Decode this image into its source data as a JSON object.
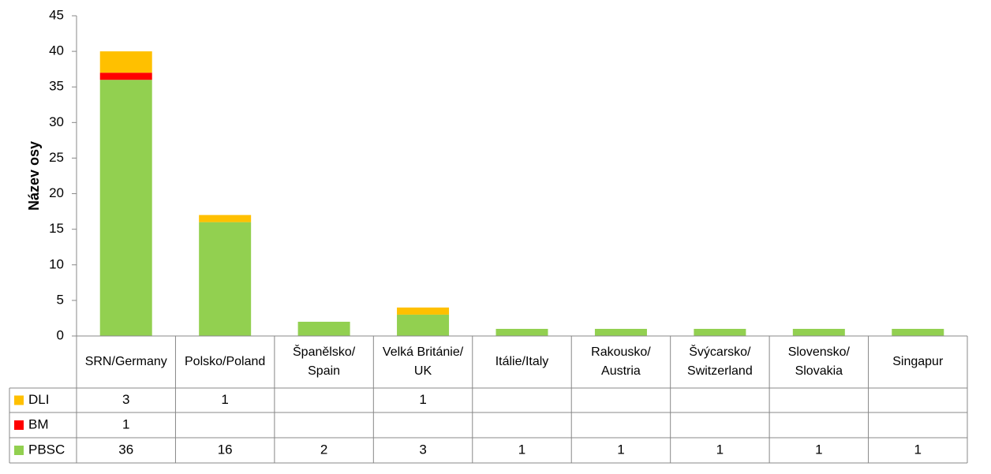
{
  "chart_data": {
    "type": "bar",
    "stacked": true,
    "y_label": "Název osy",
    "categories": [
      "SRN/Germany",
      "Polsko/Poland",
      "Španělsko/Spain",
      "Velká Británie/UK",
      "Itálie/Italy",
      "Rakousko/Austria",
      "Švýcarsko/Switzerland",
      "Slovensko/Slovakia",
      "Singapur"
    ],
    "series": [
      {
        "name": "DLI",
        "color": "#ffc000",
        "values": [
          3,
          1,
          null,
          1,
          null,
          null,
          null,
          null,
          null
        ]
      },
      {
        "name": "BM",
        "color": "#ff0000",
        "values": [
          1,
          null,
          null,
          null,
          null,
          null,
          null,
          null,
          null
        ]
      },
      {
        "name": "PBSC",
        "color": "#92d050",
        "values": [
          36,
          16,
          2,
          3,
          1,
          1,
          1,
          1,
          1
        ]
      }
    ],
    "ylim": [
      0,
      45
    ],
    "yticks": [
      0,
      5,
      10,
      15,
      20,
      25,
      30,
      35,
      40,
      45
    ],
    "grid": false
  }
}
